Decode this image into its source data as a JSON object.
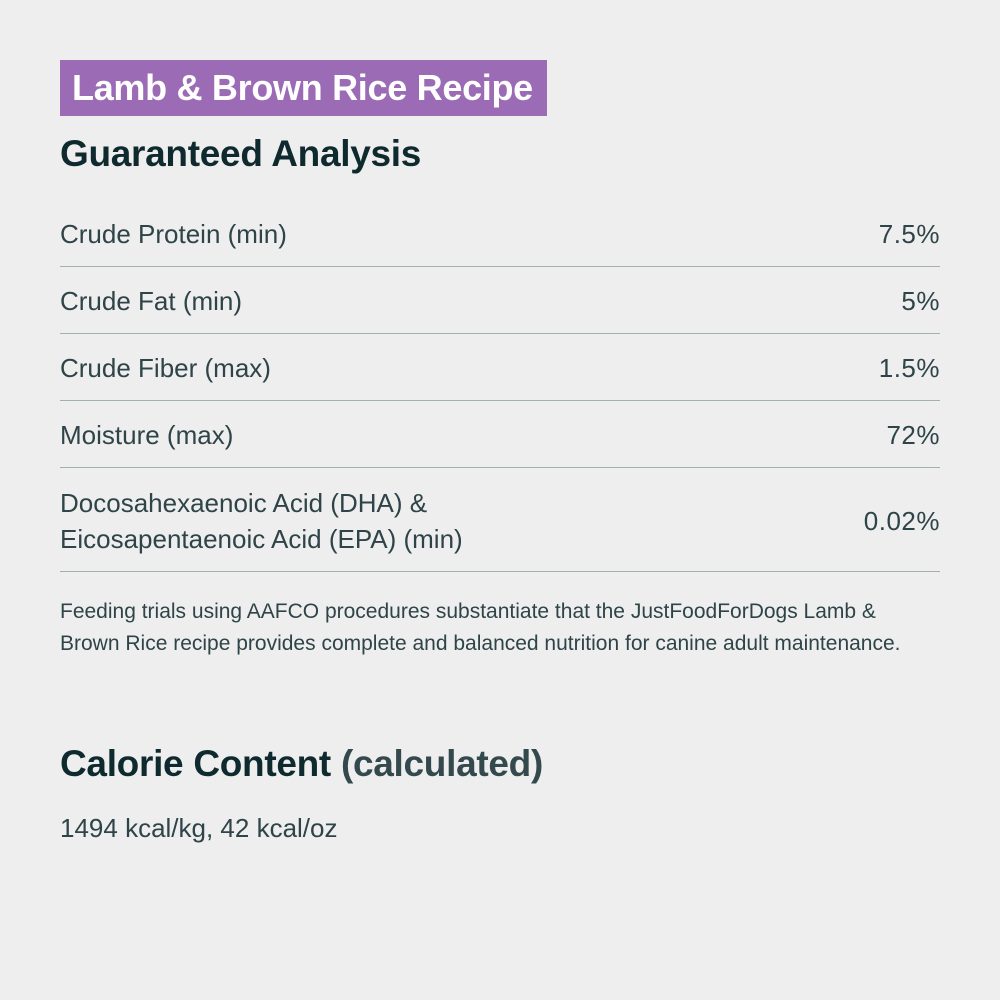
{
  "recipe_banner": {
    "label": "Lamb & Brown Rice Recipe",
    "color": "#9b6bb5"
  },
  "guaranteed_analysis": {
    "title": "Guaranteed Analysis",
    "rows": [
      {
        "label": "Crude Protein (min)",
        "value": "7.5%"
      },
      {
        "label": "Crude Fat (min)",
        "value": "5%"
      },
      {
        "label": "Crude Fiber (max)",
        "value": "1.5%"
      },
      {
        "label": "Moisture (max)",
        "value": "72%"
      },
      {
        "label": "Docosahexaenoic Acid (DHA) &\nEicosapentaenoic Acid (EPA) (min)",
        "value": "0.02%"
      }
    ]
  },
  "feeding_note": "Feeding trials using AAFCO procedures substantiate that the JustFoodForDogs Lamb & Brown Rice recipe provides complete and balanced nutrition for canine adult maintenance.",
  "calorie_content": {
    "title": "Calorie Content",
    "subtitle": "(calculated)",
    "value": "1494 kcal/kg, 42 kcal/oz"
  },
  "colors": {
    "background": "#eeeeee",
    "heading_text": "#0f2a2e",
    "body_text": "#2f4448",
    "divider": "#a3b0b1"
  }
}
